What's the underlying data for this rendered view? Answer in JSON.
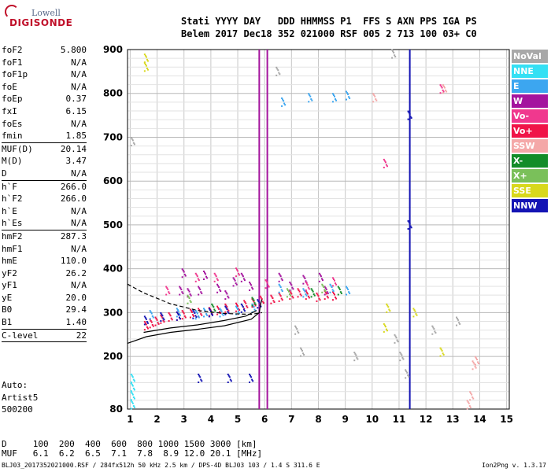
{
  "logo": {
    "line1": "Lowell",
    "line2": "DIGISONDE"
  },
  "header": {
    "line1": "Stati YYYY DAY   DDD HHMMSS P1  FFS S AXN PPS IGA PS",
    "line2": "Belem 2017 Dec18 352 021000 RSF 005 2 713 100 03+ C0"
  },
  "params": [
    {
      "name": "foF2",
      "value": "5.800"
    },
    {
      "name": "foF1",
      "value": "N/A"
    },
    {
      "name": "foF1p",
      "value": "N/A"
    },
    {
      "name": "foE",
      "value": "N/A"
    },
    {
      "name": "foEp",
      "value": "0.37"
    },
    {
      "name": "fxI",
      "value": "6.15"
    },
    {
      "name": "foEs",
      "value": "N/A"
    },
    {
      "name": "fmin",
      "value": "1.85",
      "sep": true
    },
    {
      "name": "MUF(D)",
      "value": "20.14"
    },
    {
      "name": "M(D)",
      "value": "3.47"
    },
    {
      "name": "D",
      "value": "N/A",
      "sep": true
    },
    {
      "name": "h`F",
      "value": "266.0"
    },
    {
      "name": "h`F2",
      "value": "266.0"
    },
    {
      "name": "h`E",
      "value": "N/A"
    },
    {
      "name": "h`Es",
      "value": "N/A",
      "sep": true
    },
    {
      "name": "hmF2",
      "value": "287.3"
    },
    {
      "name": "hmF1",
      "value": "N/A"
    },
    {
      "name": "hmE",
      "value": "110.0"
    },
    {
      "name": "yF2",
      "value": "26.2"
    },
    {
      "name": "yF1",
      "value": "N/A"
    },
    {
      "name": "yE",
      "value": "20.0"
    },
    {
      "name": "B0",
      "value": "29.4"
    },
    {
      "name": "B1",
      "value": "1.40",
      "sep": true
    },
    {
      "name": "C-level",
      "value": "22",
      "sep": true
    }
  ],
  "auto": {
    "line1": "Auto:",
    "line2": "Artist5",
    "line3": "500200"
  },
  "legend": [
    {
      "label": "NoVal",
      "color": "#a8a8a8"
    },
    {
      "label": "NNE",
      "color": "#34e0f4"
    },
    {
      "label": "E",
      "color": "#3ca6f0"
    },
    {
      "label": "W",
      "color": "#a4149e"
    },
    {
      "label": "Vo-",
      "color": "#f0388e"
    },
    {
      "label": "Vo+",
      "color": "#f01448"
    },
    {
      "label": "SSW",
      "color": "#f4a8a8"
    },
    {
      "label": "X-",
      "color": "#128c28"
    },
    {
      "label": "X+",
      "color": "#7ac05a"
    },
    {
      "label": "SSE",
      "color": "#d8d81c"
    },
    {
      "label": "NNW",
      "color": "#1414b4"
    }
  ],
  "dmuf": {
    "d_row": "D     100  200  400  600  800 1000 1500 3000 [km]",
    "muf_row": "MUF   6.1  6.2  6.5  7.1  7.8  8.9 12.0 20.1 [MHz]"
  },
  "footer": "BLJ03_2017352021000.RSF / 284fx512h 50 kHz 2.5 km / DPS-4D BLJ03 103 / 1.4 S 311.6 E",
  "version": "Ion2Png v. 1.3.17",
  "chart_data": {
    "type": "scatter",
    "x_ticks": [
      1,
      2,
      3,
      4,
      5,
      6,
      7,
      8,
      9,
      10,
      11,
      12,
      13,
      14,
      15
    ],
    "y_ticks": [
      80,
      200,
      300,
      400,
      500,
      600,
      700,
      800,
      900
    ],
    "xlim": [
      0.9,
      15.1
    ],
    "ylim": [
      80,
      900
    ],
    "grid": true,
    "series": [
      {
        "name": "Vo+",
        "color": "#f01448",
        "points": [
          [
            1.6,
            270
          ],
          [
            1.8,
            275
          ],
          [
            2.0,
            280
          ],
          [
            2.2,
            285
          ],
          [
            2.5,
            290
          ],
          [
            2.8,
            292
          ],
          [
            3.0,
            295
          ],
          [
            3.3,
            298
          ],
          [
            3.6,
            300
          ],
          [
            4.0,
            302
          ],
          [
            4.3,
            305
          ],
          [
            4.6,
            310
          ],
          [
            5.0,
            312
          ],
          [
            5.3,
            318
          ],
          [
            5.6,
            322
          ],
          [
            5.9,
            328
          ],
          [
            6.3,
            330
          ],
          [
            6.6,
            335
          ],
          [
            7.0,
            340
          ],
          [
            7.3,
            345
          ],
          [
            7.6,
            340
          ],
          [
            8.0,
            335
          ],
          [
            8.3,
            340
          ],
          [
            8.6,
            338
          ]
        ]
      },
      {
        "name": "W",
        "color": "#a4149e",
        "points": [
          [
            2.9,
            350
          ],
          [
            3.0,
            390
          ],
          [
            3.2,
            345
          ],
          [
            3.6,
            350
          ],
          [
            3.8,
            385
          ],
          [
            4.3,
            355
          ],
          [
            4.6,
            340
          ],
          [
            4.9,
            370
          ],
          [
            5.2,
            380
          ],
          [
            5.5,
            360
          ],
          [
            6.6,
            380
          ],
          [
            7.0,
            360
          ],
          [
            7.5,
            375
          ],
          [
            8.1,
            380
          ],
          [
            8.3,
            350
          ]
        ]
      },
      {
        "name": "Vo-",
        "color": "#f0388e",
        "points": [
          [
            2.4,
            350
          ],
          [
            3.5,
            380
          ],
          [
            4.2,
            380
          ],
          [
            5.0,
            392
          ],
          [
            6.1,
            365
          ],
          [
            7.6,
            360
          ],
          [
            8.6,
            370
          ],
          [
            10.5,
            640
          ],
          [
            12.6,
            810
          ]
        ]
      },
      {
        "name": "E",
        "color": "#3ca6f0",
        "points": [
          [
            1.8,
            295
          ],
          [
            2.8,
            300
          ],
          [
            3.5,
            295
          ],
          [
            3.8,
            300
          ],
          [
            4.4,
            300
          ],
          [
            5.0,
            305
          ],
          [
            5.6,
            310
          ],
          [
            6.6,
            355
          ],
          [
            7.5,
            345
          ],
          [
            8.5,
            355
          ],
          [
            9.1,
            350
          ],
          [
            8.6,
            790
          ],
          [
            9.1,
            795
          ],
          [
            7.7,
            790
          ],
          [
            6.7,
            780
          ]
        ]
      },
      {
        "name": "NNW",
        "color": "#1414b4",
        "points": [
          [
            1.6,
            282
          ],
          [
            2.2,
            290
          ],
          [
            2.8,
            292
          ],
          [
            3.4,
            296
          ],
          [
            4.0,
            300
          ],
          [
            4.6,
            305
          ],
          [
            5.2,
            310
          ],
          [
            5.8,
            320
          ],
          [
            3.6,
            150
          ],
          [
            4.7,
            150
          ],
          [
            5.5,
            150
          ],
          [
            11.4,
            500
          ],
          [
            11.4,
            750
          ]
        ]
      },
      {
        "name": "X-",
        "color": "#128c28",
        "points": [
          [
            4.1,
            310
          ],
          [
            5.6,
            325
          ],
          [
            7.8,
            345
          ],
          [
            8.8,
            350
          ]
        ]
      },
      {
        "name": "X+",
        "color": "#7ac05a",
        "points": [
          [
            3.2,
            330
          ],
          [
            6.9,
            345
          ],
          [
            8.2,
            355
          ]
        ]
      },
      {
        "name": "SSE",
        "color": "#d8d81c",
        "points": [
          [
            1.6,
            860
          ],
          [
            1.6,
            880
          ],
          [
            10.6,
            310
          ],
          [
            11.6,
            300
          ],
          [
            12.6,
            210
          ],
          [
            10.5,
            265
          ]
        ]
      },
      {
        "name": "SSW",
        "color": "#f4a8a8",
        "points": [
          [
            10.1,
            790
          ],
          [
            12.7,
            810
          ],
          [
            13.6,
            90
          ],
          [
            13.7,
            110
          ],
          [
            13.8,
            180
          ],
          [
            13.9,
            190
          ]
        ]
      },
      {
        "name": "NNE",
        "color": "#34e0f4",
        "points": [
          [
            1.1,
            90
          ],
          [
            1.1,
            110
          ],
          [
            1.1,
            130
          ],
          [
            1.1,
            150
          ]
        ]
      },
      {
        "name": "NoVal",
        "color": "#a8a8a8",
        "points": [
          [
            1.1,
            690
          ],
          [
            6.5,
            850
          ],
          [
            7.2,
            260
          ],
          [
            7.4,
            210
          ],
          [
            9.4,
            200
          ],
          [
            10.8,
            890
          ],
          [
            10.9,
            240
          ],
          [
            11.1,
            200
          ],
          [
            11.3,
            160
          ],
          [
            12.3,
            260
          ],
          [
            13.2,
            280
          ]
        ]
      }
    ],
    "vertical_lines": [
      {
        "color": "#a4149e",
        "x": 5.8,
        "y_from": 80,
        "y_to": 900
      },
      {
        "color": "#a4149e",
        "x": 6.1,
        "y_from": 80,
        "y_to": 900
      },
      {
        "color": "#1414b4",
        "x": 11.4,
        "y_from": 80,
        "y_to": 900
      }
    ],
    "profile_solid": [
      [
        0.9,
        230
      ],
      [
        1.6,
        245
      ],
      [
        2.5,
        255
      ],
      [
        3.5,
        262
      ],
      [
        4.5,
        270
      ],
      [
        5.5,
        285
      ],
      [
        5.8,
        300
      ],
      [
        5.85,
        320
      ],
      [
        5.9,
        330
      ]
    ],
    "profile_solid2": [
      [
        1.5,
        255
      ],
      [
        2.5,
        265
      ],
      [
        3.5,
        272
      ],
      [
        4.5,
        282
      ],
      [
        5.3,
        292
      ],
      [
        5.7,
        305
      ]
    ],
    "profile_dashed": [
      [
        0.9,
        365
      ],
      [
        1.5,
        345
      ],
      [
        2.5,
        320
      ],
      [
        3.5,
        305
      ],
      [
        4.5,
        298
      ],
      [
        5.5,
        296
      ],
      [
        5.9,
        300
      ]
    ]
  }
}
